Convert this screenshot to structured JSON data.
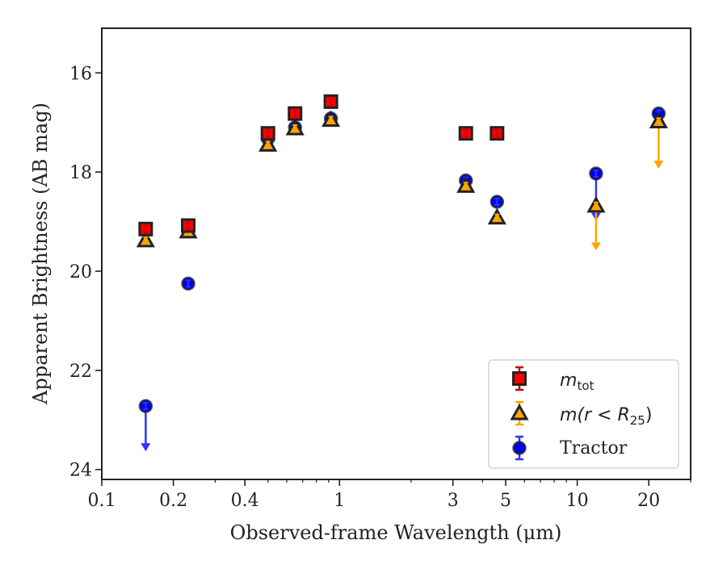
{
  "chart_data": {
    "type": "scatter",
    "xlabel": "Observed-frame Wavelength (μm)",
    "ylabel": "Apparent Brightness (AB mag)",
    "xscale": "log",
    "xlim": [
      0.1,
      30
    ],
    "ylim": [
      24.2,
      15.1
    ],
    "y_inverted": true,
    "x_ticks": [
      0.1,
      0.2,
      0.4,
      1,
      3,
      5,
      10,
      20
    ],
    "x_tick_labels": [
      "0.1",
      "0.2",
      "0.4",
      "1",
      "3",
      "5",
      "10",
      "20"
    ],
    "y_ticks": [
      16,
      18,
      20,
      22,
      24
    ],
    "y_tick_labels": [
      "16",
      "18",
      "20",
      "22",
      "24"
    ],
    "legend_position": "lower right",
    "series": [
      {
        "name": "m_tot",
        "legend_main": "m",
        "legend_sub": "tot",
        "marker": "square",
        "color": "#ff0000",
        "error_color": "#cc0000",
        "points": [
          {
            "x": 0.153,
            "y": 19.15
          },
          {
            "x": 0.231,
            "y": 19.08
          },
          {
            "x": 0.5,
            "y": 17.22
          },
          {
            "x": 0.65,
            "y": 16.82
          },
          {
            "x": 0.92,
            "y": 16.58
          },
          {
            "x": 3.4,
            "y": 17.22
          },
          {
            "x": 4.6,
            "y": 17.22
          }
        ]
      },
      {
        "name": "m(r < R_25)",
        "legend_text": "m(r < R",
        "legend_sub": "25",
        "legend_close": ")",
        "marker": "triangle",
        "color": "#ffa500",
        "error_color": "#ffa500",
        "points": [
          {
            "x": 0.153,
            "y": 19.38
          },
          {
            "x": 0.231,
            "y": 19.2
          },
          {
            "x": 0.5,
            "y": 17.45
          },
          {
            "x": 0.65,
            "y": 17.12
          },
          {
            "x": 0.92,
            "y": 16.95
          },
          {
            "x": 3.4,
            "y": 18.28
          },
          {
            "x": 4.6,
            "y": 18.92
          },
          {
            "x": 12.0,
            "y": 18.68,
            "upper_limit_to": 19.55
          },
          {
            "x": 22.0,
            "y": 16.98,
            "upper_limit_to": 17.9
          }
        ]
      },
      {
        "name": "Tractor",
        "marker": "circle",
        "color": "#0000ff",
        "error_color": "#3333ff",
        "points": [
          {
            "x": 0.153,
            "y": 22.72,
            "upper_limit_to": 23.6
          },
          {
            "x": 0.231,
            "y": 20.25
          },
          {
            "x": 0.5,
            "y": 17.33
          },
          {
            "x": 0.65,
            "y": 17.1
          },
          {
            "x": 0.92,
            "y": 16.92
          },
          {
            "x": 3.4,
            "y": 18.17
          },
          {
            "x": 4.6,
            "y": 18.6
          },
          {
            "x": 12.0,
            "y": 18.03,
            "upper_limit_to": 18.95
          },
          {
            "x": 22.0,
            "y": 16.82
          }
        ]
      }
    ]
  }
}
